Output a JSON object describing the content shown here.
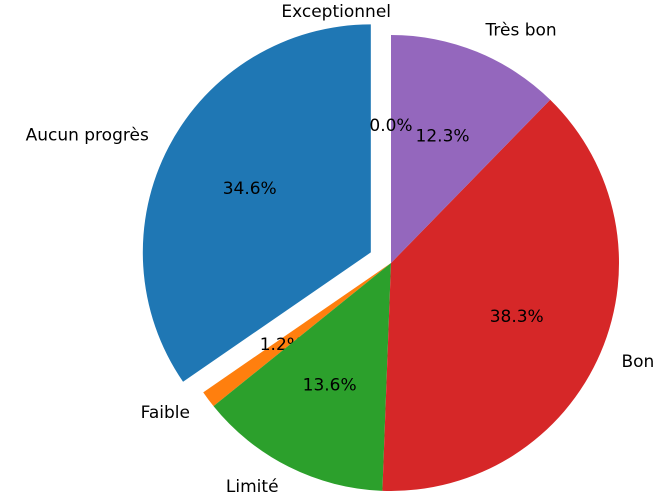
{
  "chart_data": {
    "type": "pie",
    "categories": [
      "Aucun progrès",
      "Faible",
      "Limité",
      "Bon",
      "Très bon",
      "Exceptionnel"
    ],
    "values": [
      34.6,
      1.2,
      13.6,
      38.3,
      12.3,
      0.0
    ],
    "value_labels": [
      "34.6%",
      "1.2%",
      "13.6%",
      "38.3%",
      "12.3%",
      "0.0%"
    ],
    "colors": [
      "#1f77b4",
      "#ff7f0e",
      "#2ca02c",
      "#d62728",
      "#9467bd",
      "#8c564b"
    ],
    "explode": [
      0.1,
      0,
      0,
      0,
      0,
      0
    ],
    "startangle": 90,
    "counterclockwise": true
  }
}
